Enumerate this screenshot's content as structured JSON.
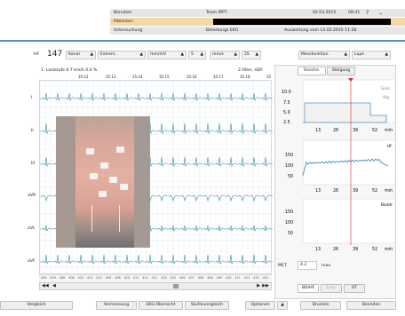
{
  "header": {
    "benutzer_label": "Benutzer",
    "team": "Team IRPT",
    "date": "02.03.2015",
    "time": "09:41",
    "patient_label": "Patienten",
    "untersuchung_label": "Untersuchung",
    "belastung": "Belastungs EKG",
    "auswertung": "Auswertung vom 13.02.2015 11:58",
    "help_glyph": "?",
    "min_glyph": "_"
  },
  "toolbar": {
    "hf_label": "HF",
    "hf_value": "147",
    "kanal": "Kanal",
    "extrem": "Extrem.",
    "mm_mv": "mm/mV",
    "amp": "5",
    "mm_s": "mm/s",
    "speed": "25",
    "messfunktion": "Messfunktion",
    "lupe": "Lupe"
  },
  "ecg": {
    "stage_info": "1. Laststufe  6.7 km/h  0.0 %",
    "filter_info": "2 Filter, ADF",
    "time_ticks": [
      "35:12",
      "35:13",
      "35:14",
      "35:15",
      "35:16",
      "35:17",
      "35:18",
      "35"
    ],
    "leads": [
      "I",
      "II",
      "III",
      "aVR",
      "aVL",
      "aVF"
    ],
    "beat_numbers": [
      "409",
      "409",
      "408",
      "408",
      "410",
      "411",
      "412",
      "409",
      "408",
      "410",
      "411",
      "412",
      "411",
      "413",
      "412",
      "406",
      "407",
      "408",
      "409",
      "409",
      "410",
      "411",
      "411",
      "410",
      "412"
    ]
  },
  "tabs": {
    "gesch": "Gesche.",
    "steigung": "Steigung"
  },
  "panels": {
    "speed": {
      "yticks": [
        "10.0",
        "7.5",
        "5.0",
        "2.5"
      ],
      "legend_top": "Gesc.",
      "legend_bottom": "Stg."
    },
    "hr": {
      "yticks": [
        "150",
        "100",
        "50"
      ],
      "legend": "HF"
    },
    "bp": {
      "yticks": [
        "150",
        "100",
        "50"
      ],
      "legend": "Blutdr."
    },
    "xticks": [
      "13",
      "26",
      "39",
      "52"
    ],
    "xunit": "min"
  },
  "met": {
    "label": "MET",
    "value": "4.2",
    "suffix": "max."
  },
  "mode_buttons": {
    "bd_hf": "BD/HF",
    "esp": "Ersp.",
    "st": "ST"
  },
  "footer": {
    "vergleich": "Vergleich",
    "vermessung": "Vermessung",
    "ekg_uebersicht": "EKG-Übersicht",
    "stufenvergleich": "Stufenvergleich",
    "optionen": "Optionen",
    "drucken": "Drucken",
    "beenden": "Beenden"
  },
  "colors": {
    "accent": "#5a8fc2",
    "trace": "#3b8f9a",
    "header_orange": "#f6d7a8",
    "header_grey": "#e6e6e6",
    "marker": "#cc3333"
  }
}
